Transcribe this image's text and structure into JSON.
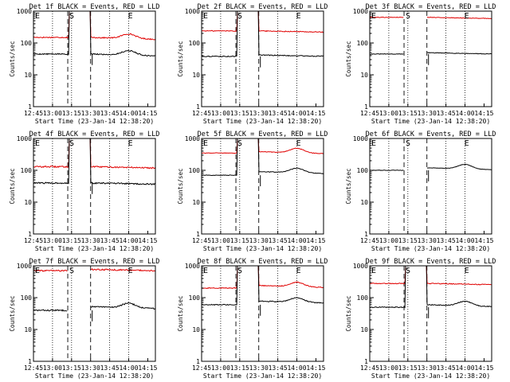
{
  "chart_data": {
    "type": "line",
    "x_tick_labels": [
      "12:45",
      "13:00",
      "13:15",
      "13:30",
      "13:45",
      "14:00",
      "14:15"
    ],
    "y_tick_labels": [
      "1",
      "10",
      "100",
      "1000"
    ],
    "ylabel": "Counts/sec",
    "xlabel": "Start Time (23-Jan-14 12:38:20)",
    "y_scale": "log",
    "ylim": [
      1,
      1000
    ],
    "markers": [
      "E",
      "S",
      "E"
    ],
    "colors": {
      "events": "#000000",
      "lld": "#e00000"
    },
    "panels": [
      {
        "title": "Det 1f BLACK = Events, RED = LLD",
        "events_level": 45,
        "lld_level": 150,
        "events_ripple": 1.0,
        "lld_ripple": 1.0,
        "events_shape": "hump",
        "lld_shape": "hump",
        "spike": "both",
        "noise": 0.04
      },
      {
        "title": "Det 2f BLACK = Events, RED = LLD",
        "events_level": 38,
        "lld_level": 240,
        "events_ripple": 1.1,
        "lld_ripple": 1.0,
        "events_shape": "flat",
        "lld_shape": "flat",
        "spike": "both",
        "noise": 0.03
      },
      {
        "title": "Det 3f BLACK = Events, RED = LLD",
        "events_level": 45,
        "lld_level": 640,
        "events_ripple": 1.1,
        "lld_ripple": 1.0,
        "events_shape": "flat",
        "lld_shape": "flat",
        "spike": "none",
        "noise": 0.02
      },
      {
        "title": "Det 4f BLACK = Events, RED = LLD",
        "events_level": 40,
        "lld_level": 130,
        "events_ripple": 1.0,
        "lld_ripple": 1.0,
        "events_shape": "flat",
        "lld_shape": "flat",
        "spike": "both",
        "noise": 0.05
      },
      {
        "title": "Det 5f BLACK = Events, RED = LLD",
        "events_level": 70,
        "lld_level": 350,
        "events_ripple": 1.3,
        "lld_ripple": 1.1,
        "events_shape": "hump",
        "lld_shape": "hump",
        "spike": "both",
        "noise": 0.02
      },
      {
        "title": "Det 6f BLACK = Events, RED = LLD",
        "events_level": 100,
        "lld_level": null,
        "events_ripple": 1.2,
        "lld_ripple": 1.0,
        "events_shape": "hump",
        "lld_shape": "flat",
        "spike": "none",
        "noise": 0.015
      },
      {
        "title": "Det 7f BLACK = Events, RED = LLD",
        "events_level": 40,
        "lld_level": 700,
        "events_ripple": 1.3,
        "lld_ripple": 1.1,
        "events_shape": "hump",
        "lld_shape": "flat",
        "spike": "none",
        "noise": 0.05
      },
      {
        "title": "Det 8f BLACK = Events, RED = LLD",
        "events_level": 60,
        "lld_level": 200,
        "events_ripple": 1.3,
        "lld_ripple": 1.2,
        "events_shape": "hump",
        "lld_shape": "hump",
        "spike": "both",
        "noise": 0.03
      },
      {
        "title": "Det 9f BLACK = Events, RED = LLD",
        "events_level": 50,
        "lld_level": 280,
        "events_ripple": 1.2,
        "lld_ripple": 1.0,
        "events_shape": "hump",
        "lld_shape": "flat",
        "spike": "both",
        "noise": 0.03
      }
    ]
  }
}
